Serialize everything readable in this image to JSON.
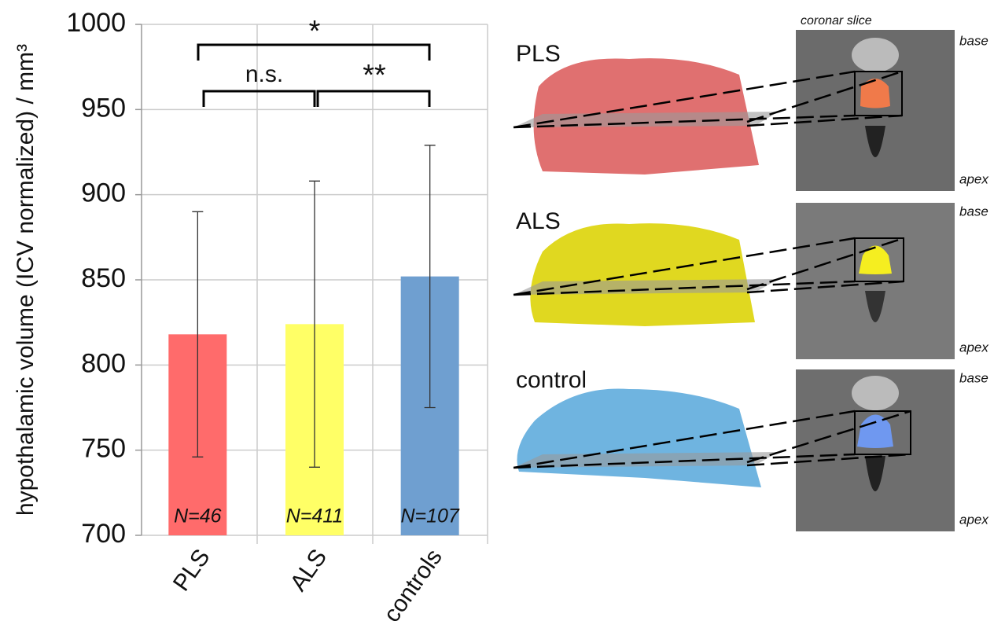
{
  "chart_data": {
    "type": "bar",
    "y_label": "hypothalamic volume (ICV normalized) / mm³",
    "categories": [
      "PLS",
      "ALS",
      "controls"
    ],
    "values": [
      818,
      824,
      852
    ],
    "errors": [
      72,
      84,
      77
    ],
    "colors": [
      "#ff6b6b",
      "#ffff66",
      "#6f9fd0"
    ],
    "n_labels": [
      "N=46",
      "N=411",
      "N=107"
    ],
    "annotations": [
      "*",
      "n.s.",
      "**"
    ],
    "ylim": [
      700,
      1000
    ],
    "yticks": [
      700,
      750,
      800,
      850,
      900,
      950,
      1000
    ],
    "grid": true
  },
  "panels": {
    "slice_title": "coronar slice",
    "rows": [
      {
        "label": "PLS",
        "top": "base",
        "bottom": "apex"
      },
      {
        "label": "ALS",
        "top": "base",
        "bottom": "apex"
      },
      {
        "label": "control",
        "top": "base",
        "bottom": "apex"
      }
    ]
  }
}
